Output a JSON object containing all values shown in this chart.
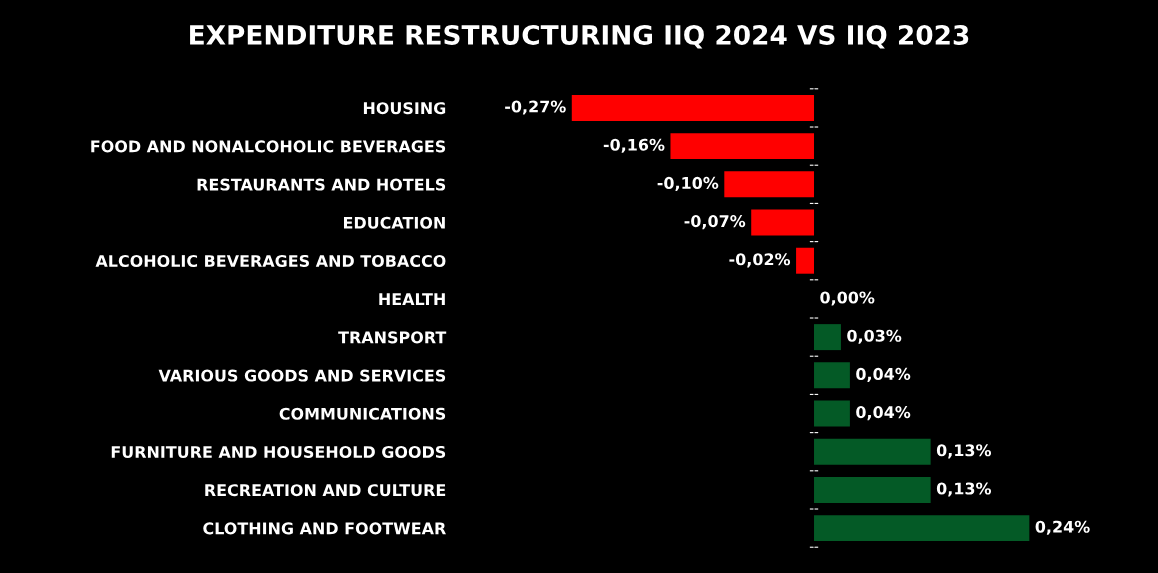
{
  "chart_data": {
    "type": "bar",
    "orientation": "horizontal",
    "title": "EXPENDITURE RESTRUCTURING IIQ 2024 VS IIQ 2023",
    "categories": [
      "HOUSING",
      "FOOD AND NONALCOHOLIC BEVERAGES",
      "RESTAURANTS AND HOTELS",
      "EDUCATION",
      "ALCOHOLIC BEVERAGES AND TOBACCO",
      "HEALTH",
      "TRANSPORT",
      "VARIOUS GOODS AND SERVICES",
      "COMMUNICATIONS",
      "FURNITURE AND HOUSEHOLD GOODS",
      "RECREATION AND CULTURE",
      "CLOTHING AND FOOTWEAR"
    ],
    "values": [
      -0.27,
      -0.16,
      -0.1,
      -0.07,
      -0.02,
      0.0,
      0.03,
      0.04,
      0.04,
      0.13,
      0.13,
      0.24
    ],
    "value_labels": [
      "-0,27%",
      "-0,16%",
      "-0,10%",
      "-0,07%",
      "-0,02%",
      "0,00%",
      "0,03%",
      "0,04%",
      "0,04%",
      "0,13%",
      "0,13%",
      "0,24%"
    ],
    "colors": [
      "#ff0000",
      "#ff0000",
      "#ff0000",
      "#ff0000",
      "#ff0000",
      "#045a26",
      "#045a26",
      "#045a26",
      "#045a26",
      "#045a26",
      "#045a26",
      "#045a26"
    ],
    "grid": false,
    "legend": false
  }
}
